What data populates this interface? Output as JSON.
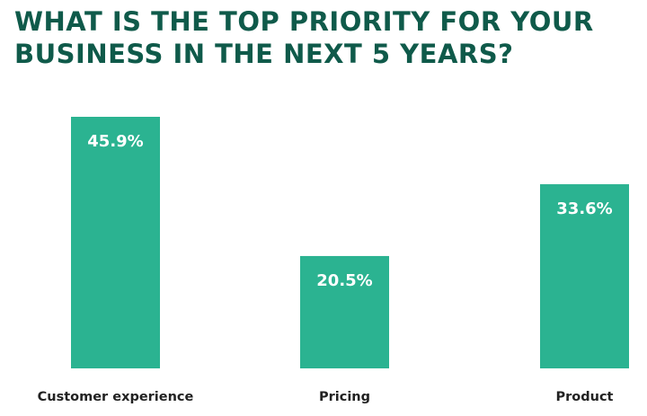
{
  "chart_data": {
    "type": "bar",
    "title_lines": [
      "WHAT IS THE TOP PRIORITY FOR YOUR",
      "BUSINESS IN THE NEXT 5 YEARS?"
    ],
    "categories": [
      "Customer experience",
      "Pricing",
      "Product"
    ],
    "values": [
      45.9,
      20.5,
      33.6
    ],
    "value_labels": [
      "45.9%",
      "20.5%",
      "33.6%"
    ],
    "xlabel": "",
    "ylabel": "",
    "ylim": [
      0,
      50
    ],
    "grid": false,
    "legend": "none",
    "bar_color": "#2bb391",
    "title_color": "#0f5a4a"
  }
}
